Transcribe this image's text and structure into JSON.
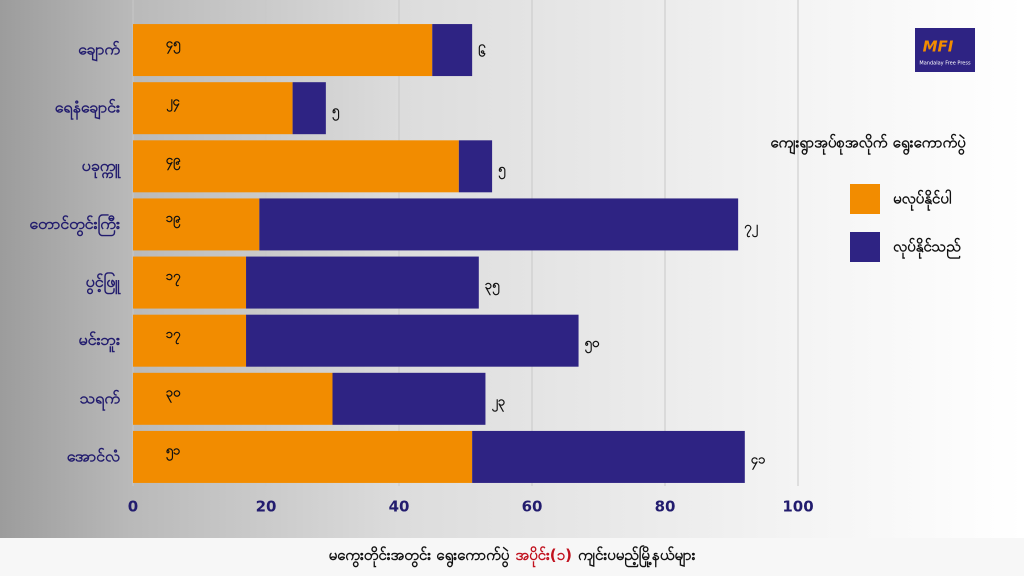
{
  "chart_data": {
    "type": "stacked-barh",
    "categories": [
      "ချောက်",
      "ရေနံချောင်း",
      "ပခုက္ကူ",
      "တောင်တွင်းကြီး",
      "ပွင့်ဖြူ",
      "မင်းဘူး",
      "သရက်",
      "အောင်လံ"
    ],
    "series": [
      {
        "name": "မလုပ်နိုင်ပါ",
        "color": "#f28c00",
        "values": [
          45,
          24,
          49,
          19,
          17,
          17,
          30,
          51
        ],
        "value_labels": [
          "၄၅",
          "၂၄",
          "၄၉",
          "၁၉",
          "၁၇",
          "၁၇",
          "၃၀",
          "၅၁"
        ]
      },
      {
        "name": "လုပ်နိုင်သည်",
        "color": "#2e2383",
        "values": [
          6,
          5,
          5,
          72,
          35,
          50,
          23,
          41
        ],
        "value_labels": [
          "၆",
          "၅",
          "၅",
          "၇၂",
          "၃၅",
          "၅၀",
          "၂၃",
          "၄၁"
        ]
      }
    ],
    "xlim": [
      0,
      100
    ],
    "xticks": [
      0,
      20,
      40,
      60,
      80,
      100
    ],
    "grid": true,
    "legend_title": "ကျေးရွာအုပ်စုအလိုက် ရွေးကောက်ပွဲ",
    "legend_position": "right"
  },
  "footer": [
    "မကွေးတိုင်းအတွင်း ရွေးကောက်ပွဲ",
    "အပိုင်း(၁)",
    "ကျင်းပမည့်မြို့နယ်များ"
  ],
  "logo": {
    "mark": "MFI",
    "name": "Mandalay Free Press"
  }
}
